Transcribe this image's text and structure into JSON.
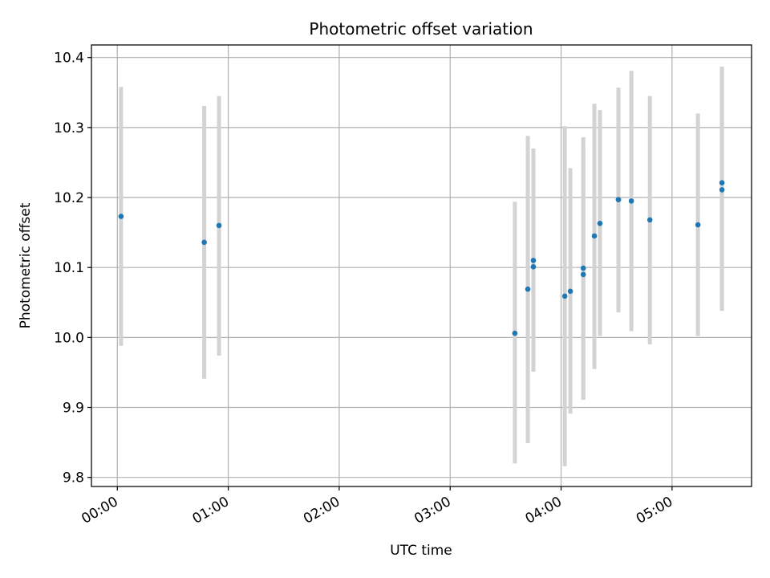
{
  "chart_data": {
    "type": "scatter",
    "title": "Photometric offset variation",
    "xlabel": "UTC time",
    "ylabel": "Photometric offset",
    "x_unit": "UTC time (HH:MM)",
    "xlim": [
      "-00:14",
      "05:43"
    ],
    "ylim": [
      9.787,
      10.418
    ],
    "x_ticks": [
      "00:00",
      "01:00",
      "02:00",
      "03:00",
      "04:00",
      "05:00"
    ],
    "y_ticks": [
      9.8,
      9.9,
      10.0,
      10.1,
      10.2,
      10.3,
      10.4
    ],
    "y_tick_labels": [
      "9.8",
      "9.9",
      "10.0",
      "10.1",
      "10.2",
      "10.3",
      "10.4"
    ],
    "grid": true,
    "series": [
      {
        "color": "#1f77b4",
        "errorbar_color": "#d3d3d3",
        "points": [
          {
            "x": "00:02",
            "y": 10.173,
            "ylow": 9.988,
            "yhigh": 10.358
          },
          {
            "x": "00:47",
            "y": 10.136,
            "ylow": 9.941,
            "yhigh": 10.331
          },
          {
            "x": "00:55",
            "y": 10.16,
            "ylow": 9.974,
            "yhigh": 10.345
          },
          {
            "x": "03:35",
            "y": 10.006,
            "ylow": 9.82,
            "yhigh": 10.194
          },
          {
            "x": "03:42",
            "y": 10.069,
            "ylow": 9.849,
            "yhigh": 10.288
          },
          {
            "x": "03:45",
            "y": 10.101,
            "ylow": 9.951,
            "yhigh": 10.253
          },
          {
            "x": "03:45",
            "y": 10.11,
            "ylow": 9.951,
            "yhigh": 10.27
          },
          {
            "x": "04:02",
            "y": 10.059,
            "ylow": 9.816,
            "yhigh": 10.302
          },
          {
            "x": "04:05",
            "y": 10.066,
            "ylow": 9.891,
            "yhigh": 10.242
          },
          {
            "x": "04:12",
            "y": 10.099,
            "ylow": 9.911,
            "yhigh": 10.286
          },
          {
            "x": "04:12",
            "y": 10.09,
            "ylow": 9.911,
            "yhigh": 10.269
          },
          {
            "x": "04:18",
            "y": 10.145,
            "ylow": 9.955,
            "yhigh": 10.334
          },
          {
            "x": "04:21",
            "y": 10.163,
            "ylow": 10.002,
            "yhigh": 10.325
          },
          {
            "x": "04:31",
            "y": 10.197,
            "ylow": 10.036,
            "yhigh": 10.357
          },
          {
            "x": "04:31",
            "y": 10.197,
            "ylow": 10.04,
            "yhigh": 10.354
          },
          {
            "x": "04:38",
            "y": 10.195,
            "ylow": 10.009,
            "yhigh": 10.381
          },
          {
            "x": "04:48",
            "y": 10.168,
            "ylow": 9.99,
            "yhigh": 10.345
          },
          {
            "x": "05:14",
            "y": 10.161,
            "ylow": 10.002,
            "yhigh": 10.32
          },
          {
            "x": "05:27",
            "y": 10.211,
            "ylow": 10.038,
            "yhigh": 10.385
          },
          {
            "x": "05:27",
            "y": 10.221,
            "ylow": 10.055,
            "yhigh": 10.387
          }
        ]
      }
    ]
  }
}
